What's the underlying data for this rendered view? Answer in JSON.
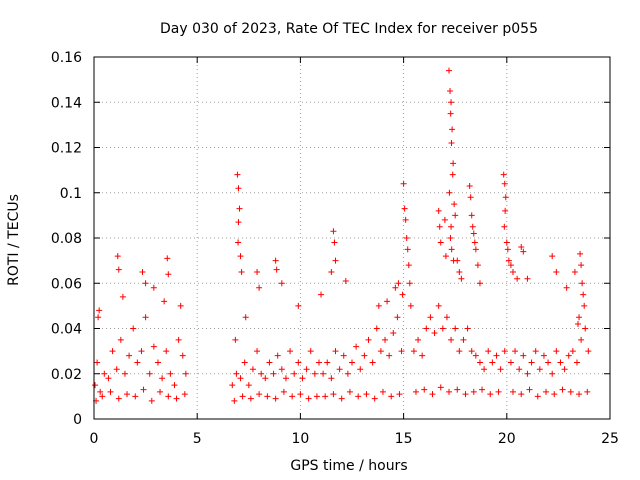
{
  "chart_data": {
    "type": "scatter",
    "title": "Day 030 of 2023, Rate Of TEC Index for receiver p055",
    "xlabel": "GPS time / hours",
    "ylabel": "ROTI / TECUs",
    "xlim": [
      0,
      25
    ],
    "ylim": [
      0,
      0.16
    ],
    "xticks": [
      0,
      5,
      10,
      15,
      20,
      25
    ],
    "xtick_labels": [
      "0",
      "5",
      "10",
      "15",
      "20",
      "25"
    ],
    "yticks": [
      0,
      0.02,
      0.04,
      0.06,
      0.08,
      0.1,
      0.12,
      0.14,
      0.16
    ],
    "ytick_labels": [
      "0",
      "0.02",
      "0.04",
      "0.06",
      "0.08",
      "0.1",
      "0.12",
      "0.14",
      "0.16"
    ],
    "grid": true,
    "marker": "plus",
    "color": "#ff0000",
    "series": [
      {
        "x": [
          0.05,
          0.15,
          0.3,
          0.5,
          0.7,
          0.9,
          1.1,
          1.3,
          1.5,
          1.7,
          1.9,
          2.1,
          2.3,
          2.5,
          2.7,
          2.9,
          3.1,
          3.3,
          3.5,
          3.7,
          3.9,
          4.1,
          4.3,
          4.45,
          0.1,
          0.4,
          0.8,
          1.2,
          1.6,
          2.0,
          2.4,
          2.8,
          3.2,
          3.6,
          4.0,
          4.4,
          1.15,
          1.2,
          2.35,
          2.5,
          3.55,
          3.6,
          0.2,
          0.25,
          1.4,
          2.9,
          3.4,
          4.2,
          6.7,
          6.9,
          7.1,
          7.3,
          7.5,
          7.7,
          7.9,
          8.1,
          8.3,
          8.5,
          8.7,
          8.9,
          9.1,
          9.3,
          9.5,
          9.7,
          9.9,
          10.1,
          10.3,
          10.5,
          10.7,
          10.9,
          6.8,
          7.2,
          7.6,
          8.0,
          8.4,
          8.8,
          9.2,
          9.6,
          10.0,
          10.4,
          10.8,
          6.95,
          7.0,
          7.05,
          7.0,
          6.98,
          7.1,
          7.15,
          7.9,
          8.0,
          8.8,
          8.85,
          9.1,
          6.85,
          7.35,
          9.9,
          11.1,
          11.3,
          11.5,
          11.7,
          11.9,
          12.1,
          12.3,
          12.5,
          12.7,
          12.9,
          13.1,
          13.3,
          13.5,
          13.7,
          13.9,
          14.1,
          14.3,
          14.5,
          14.7,
          14.9,
          11.2,
          11.6,
          12.0,
          12.4,
          12.8,
          13.2,
          13.6,
          14.0,
          14.4,
          14.8,
          11.6,
          11.65,
          11.7,
          11.5,
          12.2,
          11.0,
          13.8,
          14.2,
          14.6,
          14.75,
          15.0,
          15.05,
          15.1,
          15.15,
          15.2,
          15.25,
          15.3,
          14.95,
          15.35,
          15.5,
          15.7,
          15.9,
          16.1,
          16.3,
          16.5,
          16.7,
          16.9,
          17.1,
          17.3,
          17.5,
          17.7,
          17.9,
          18.1,
          18.3,
          18.5,
          18.7,
          18.9,
          19.1,
          19.3,
          19.5,
          19.7,
          19.9,
          15.6,
          16.0,
          16.4,
          16.8,
          17.2,
          17.6,
          18.0,
          18.4,
          18.8,
          19.2,
          19.6,
          17.2,
          17.25,
          17.3,
          17.28,
          17.35,
          17.32,
          17.4,
          17.38,
          17.22,
          17.45,
          17.5,
          17.3,
          17.27,
          17.33,
          17.42,
          16.7,
          16.75,
          16.8,
          17.0,
          17.05,
          17.6,
          17.7,
          17.8,
          18.2,
          18.25,
          18.3,
          18.35,
          18.4,
          18.45,
          18.5,
          18.6,
          18.7,
          19.85,
          19.9,
          19.95,
          19.92,
          19.88,
          20.0,
          20.05,
          20.1,
          20.2,
          20.3,
          20.5,
          20.2,
          20.4,
          20.6,
          20.8,
          21.0,
          21.2,
          21.4,
          21.6,
          21.8,
          22.0,
          22.2,
          22.4,
          22.6,
          22.8,
          23.0,
          23.2,
          23.4,
          23.6,
          23.8,
          23.95,
          20.3,
          20.7,
          21.1,
          21.5,
          21.9,
          22.3,
          22.7,
          23.1,
          23.5,
          23.9,
          20.7,
          20.8,
          21.0,
          22.2,
          22.4,
          22.9,
          23.3,
          23.55,
          23.6,
          23.65,
          23.7,
          23.75,
          23.5,
          23.45
        ],
        "y": [
          0.015,
          0.025,
          0.012,
          0.02,
          0.018,
          0.03,
          0.022,
          0.035,
          0.02,
          0.028,
          0.04,
          0.025,
          0.03,
          0.045,
          0.02,
          0.032,
          0.025,
          0.018,
          0.03,
          0.02,
          0.015,
          0.035,
          0.028,
          0.02,
          0.008,
          0.01,
          0.012,
          0.009,
          0.011,
          0.01,
          0.013,
          0.008,
          0.012,
          0.01,
          0.009,
          0.011,
          0.072,
          0.066,
          0.065,
          0.06,
          0.071,
          0.064,
          0.045,
          0.048,
          0.054,
          0.058,
          0.052,
          0.05,
          0.015,
          0.02,
          0.018,
          0.025,
          0.015,
          0.022,
          0.03,
          0.02,
          0.018,
          0.025,
          0.02,
          0.028,
          0.022,
          0.018,
          0.03,
          0.02,
          0.025,
          0.018,
          0.022,
          0.03,
          0.02,
          0.025,
          0.008,
          0.01,
          0.009,
          0.011,
          0.01,
          0.009,
          0.012,
          0.01,
          0.011,
          0.009,
          0.01,
          0.108,
          0.102,
          0.093,
          0.087,
          0.078,
          0.072,
          0.065,
          0.065,
          0.058,
          0.07,
          0.066,
          0.06,
          0.035,
          0.045,
          0.05,
          0.02,
          0.025,
          0.018,
          0.03,
          0.022,
          0.028,
          0.02,
          0.025,
          0.032,
          0.022,
          0.028,
          0.035,
          0.025,
          0.04,
          0.03,
          0.035,
          0.028,
          0.038,
          0.045,
          0.03,
          0.01,
          0.011,
          0.009,
          0.012,
          0.01,
          0.011,
          0.009,
          0.012,
          0.01,
          0.011,
          0.083,
          0.078,
          0.07,
          0.065,
          0.061,
          0.055,
          0.05,
          0.052,
          0.058,
          0.06,
          0.104,
          0.093,
          0.088,
          0.08,
          0.075,
          0.068,
          0.06,
          0.055,
          0.05,
          0.03,
          0.035,
          0.028,
          0.04,
          0.045,
          0.038,
          0.05,
          0.04,
          0.045,
          0.035,
          0.04,
          0.03,
          0.035,
          0.04,
          0.03,
          0.028,
          0.025,
          0.022,
          0.03,
          0.025,
          0.028,
          0.022,
          0.03,
          0.012,
          0.013,
          0.011,
          0.014,
          0.012,
          0.013,
          0.011,
          0.012,
          0.013,
          0.011,
          0.012,
          0.154,
          0.145,
          0.14,
          0.135,
          0.128,
          0.122,
          0.113,
          0.108,
          0.1,
          0.095,
          0.09,
          0.085,
          0.08,
          0.075,
          0.07,
          0.092,
          0.085,
          0.078,
          0.088,
          0.072,
          0.07,
          0.065,
          0.062,
          0.103,
          0.098,
          0.09,
          0.085,
          0.082,
          0.078,
          0.075,
          0.068,
          0.06,
          0.108,
          0.104,
          0.098,
          0.092,
          0.085,
          0.078,
          0.075,
          0.07,
          0.068,
          0.065,
          0.062,
          0.025,
          0.03,
          0.022,
          0.028,
          0.02,
          0.025,
          0.03,
          0.022,
          0.028,
          0.025,
          0.02,
          0.03,
          0.025,
          0.022,
          0.028,
          0.03,
          0.025,
          0.035,
          0.04,
          0.03,
          0.012,
          0.011,
          0.013,
          0.01,
          0.012,
          0.011,
          0.013,
          0.012,
          0.011,
          0.012,
          0.076,
          0.074,
          0.062,
          0.072,
          0.065,
          0.058,
          0.065,
          0.073,
          0.068,
          0.06,
          0.055,
          0.05,
          0.045,
          0.042
        ]
      }
    ]
  }
}
